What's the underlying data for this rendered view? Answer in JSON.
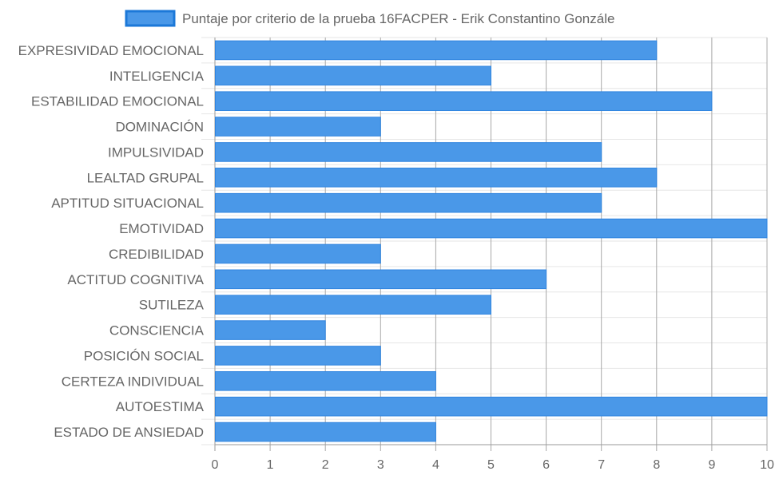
{
  "chart_data": {
    "type": "bar",
    "orientation": "horizontal",
    "title": "",
    "xlabel": "",
    "ylabel": "",
    "categories": [
      "EXPRESIVIDAD EMOCIONAL",
      "INTELIGENCIA",
      "ESTABILIDAD EMOCIONAL",
      "DOMINACIÓN",
      "IMPULSIVIDAD",
      "LEALTAD GRUPAL",
      "APTITUD SITUACIONAL",
      "EMOTIVIDAD",
      "CREDIBILIDAD",
      "ACTITUD COGNITIVA",
      "SUTILEZA",
      "CONSCIENCIA",
      "POSICIÓN SOCIAL",
      "CERTEZA INDIVIDUAL",
      "AUTOESTIMA",
      "ESTADO DE ANSIEDAD"
    ],
    "series": [
      {
        "name": "Puntaje por criterio de la prueba 16FACPER - Erik Constantino Gonzále",
        "values": [
          8,
          5,
          9,
          3,
          7,
          8,
          7,
          10,
          3,
          6,
          5,
          2,
          3,
          4,
          10,
          4
        ],
        "color": "#4a98e8",
        "border_color": "#2f84df"
      }
    ],
    "xlim": [
      0,
      10
    ],
    "x_ticks": [
      "0",
      "1",
      "2",
      "3",
      "4",
      "5",
      "6",
      "7",
      "8",
      "9",
      "10"
    ],
    "grid": true,
    "legend_position": "top"
  }
}
